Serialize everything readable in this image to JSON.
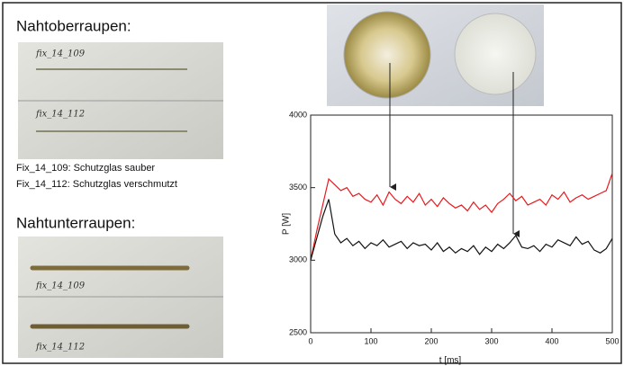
{
  "left_panel": {
    "top_heading": "Nahtoberraupen:",
    "top_photo_labels": [
      "fix_14_109",
      "fix_14_112"
    ],
    "captions": [
      "Fix_14_109: Schutzglas sauber",
      "Fix_14_112: Schutzglas verschmutzt"
    ],
    "bottom_heading": "Nahtunterraupen:",
    "bottom_photo_labels": [
      "fix_14_109",
      "fix_14_112"
    ]
  },
  "chart_data": {
    "type": "line",
    "x_label": "t [ms]",
    "y_label": "P [W]",
    "xlim": [
      0,
      500
    ],
    "xticks": [
      0,
      100,
      200,
      300,
      400,
      500
    ],
    "ylim": [
      2500,
      4000
    ],
    "yticks": [
      2500,
      3000,
      3500,
      4000
    ],
    "x": [
      0,
      10,
      20,
      30,
      40,
      50,
      60,
      70,
      80,
      90,
      100,
      110,
      120,
      130,
      140,
      150,
      160,
      170,
      180,
      190,
      200,
      210,
      220,
      230,
      240,
      250,
      260,
      270,
      280,
      290,
      300,
      310,
      320,
      330,
      340,
      350,
      360,
      370,
      380,
      390,
      400,
      410,
      420,
      430,
      440,
      450,
      460,
      470,
      480,
      490,
      500
    ],
    "series": [
      {
        "color": "#e8191c",
        "values": [
          3000,
          3200,
          3380,
          3560,
          3520,
          3480,
          3500,
          3440,
          3460,
          3420,
          3400,
          3450,
          3380,
          3470,
          3420,
          3390,
          3440,
          3400,
          3460,
          3380,
          3420,
          3370,
          3430,
          3390,
          3360,
          3380,
          3340,
          3400,
          3350,
          3380,
          3330,
          3390,
          3420,
          3460,
          3410,
          3440,
          3380,
          3400,
          3420,
          3380,
          3450,
          3420,
          3470,
          3400,
          3430,
          3450,
          3420,
          3440,
          3460,
          3480,
          3600
        ]
      },
      {
        "color": "#111111",
        "values": [
          3000,
          3150,
          3300,
          3420,
          3180,
          3120,
          3150,
          3100,
          3130,
          3080,
          3120,
          3100,
          3140,
          3090,
          3110,
          3130,
          3080,
          3120,
          3100,
          3110,
          3070,
          3120,
          3060,
          3090,
          3050,
          3080,
          3060,
          3100,
          3040,
          3090,
          3060,
          3110,
          3080,
          3120,
          3170,
          3090,
          3080,
          3100,
          3060,
          3110,
          3090,
          3140,
          3120,
          3100,
          3160,
          3110,
          3130,
          3070,
          3050,
          3080,
          3150
        ]
      }
    ]
  }
}
